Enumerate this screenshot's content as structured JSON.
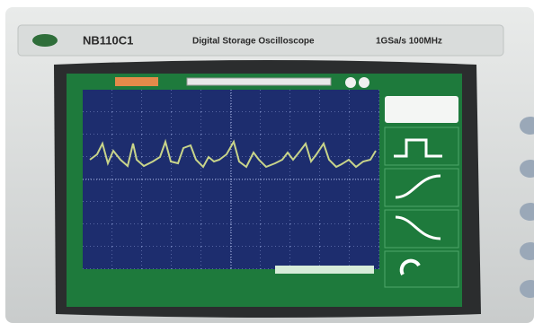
{
  "header": {
    "model": "NB110C1",
    "title": "Digital Storage Oscilloscope",
    "spec": "1GSa/s 100MHz"
  }
}
